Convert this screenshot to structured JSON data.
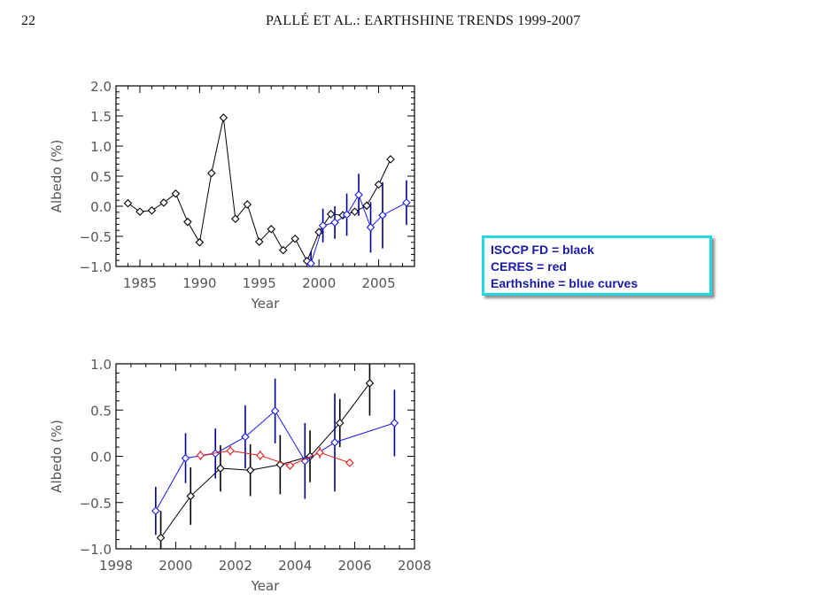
{
  "header": {
    "page_number": "22",
    "running_title": "PALLÉ ET AL.:  EARTHSHINE TRENDS 1999-2007"
  },
  "legend": {
    "lines": [
      "ISCCP FD = black",
      "CERES = red",
      "Earthshine = blue curves"
    ],
    "border_color": "#22d8e0",
    "text_color": "#1a1aa8"
  },
  "chart_data": [
    {
      "type": "line",
      "title": "",
      "xlabel": "Year",
      "ylabel": "Albedo  (%)",
      "xlim": [
        1983,
        2008
      ],
      "ylim": [
        -1.0,
        2.0
      ],
      "xticks": [
        1985,
        1990,
        1995,
        2000,
        2005
      ],
      "xtick_labels": [
        "1985",
        "1990",
        "1995",
        "2000",
        "2005"
      ],
      "yticks": [
        -1.0,
        -0.5,
        0.0,
        0.5,
        1.0,
        1.5,
        2.0
      ],
      "ytick_labels": [
        "−1.0",
        "−0.5",
        "0.0",
        "0.5",
        "1.0",
        "1.5",
        "2.0"
      ],
      "grid": false,
      "series": [
        {
          "name": "ISCCP FD",
          "color": "#000000",
          "x": [
            1984,
            1985,
            1986,
            1987,
            1988,
            1989,
            1990,
            1991,
            1992,
            1993,
            1994,
            1995,
            1996,
            1997,
            1998,
            1999,
            2000,
            2001,
            2002,
            2003,
            2004,
            2005,
            2006
          ],
          "y": [
            0.05,
            -0.09,
            -0.07,
            0.06,
            0.21,
            -0.26,
            -0.6,
            0.55,
            1.47,
            -0.21,
            0.03,
            -0.59,
            -0.38,
            -0.73,
            -0.54,
            -0.91,
            -0.43,
            -0.13,
            -0.15,
            -0.09,
            0.01,
            0.36,
            0.78
          ],
          "yerr": null
        },
        {
          "name": "Earthshine",
          "color": "#1a1ae6",
          "errcolor": "#000090",
          "x": [
            1999.33,
            2000.33,
            2001.33,
            2002.33,
            2003.33,
            2004.33,
            2005.33,
            2007.33
          ],
          "y": [
            -0.95,
            -0.32,
            -0.27,
            -0.14,
            0.19,
            -0.35,
            -0.15,
            0.06
          ],
          "yerr": [
            0.2,
            0.28,
            0.27,
            0.35,
            0.35,
            0.42,
            0.55,
            0.37
          ]
        }
      ]
    },
    {
      "type": "line",
      "title": "",
      "xlabel": "Year",
      "ylabel": "Albedo  (%)",
      "xlim": [
        1998,
        2008
      ],
      "ylim": [
        -1.0,
        1.0
      ],
      "xticks": [
        1998,
        2000,
        2002,
        2004,
        2006,
        2008
      ],
      "xtick_labels": [
        "1998",
        "2000",
        "2002",
        "2004",
        "2006",
        "2008"
      ],
      "yticks": [
        -1.0,
        -0.5,
        0.0,
        0.5,
        1.0
      ],
      "ytick_labels": [
        "−1.0",
        "−0.5",
        "0.0",
        "0.5",
        "1.0"
      ],
      "grid": false,
      "series": [
        {
          "name": "ISCCP FD",
          "color": "#000000",
          "errcolor": "#000000",
          "x": [
            1999.5,
            2000.5,
            2001.5,
            2002.5,
            2003.5,
            2004.5,
            2005.5,
            2006.5
          ],
          "y": [
            -0.88,
            -0.43,
            -0.13,
            -0.15,
            -0.09,
            0.0,
            0.36,
            0.79
          ],
          "yerr": [
            0.29,
            0.31,
            0.25,
            0.28,
            0.32,
            0.28,
            0.26,
            0.35
          ]
        },
        {
          "name": "Earthshine",
          "color": "#1a1ae6",
          "errcolor": "#000090",
          "x": [
            1999.33,
            2000.33,
            2001.33,
            2002.33,
            2003.33,
            2004.33,
            2005.33,
            2007.33
          ],
          "y": [
            -0.59,
            -0.02,
            0.03,
            0.21,
            0.49,
            -0.05,
            0.15,
            0.36
          ],
          "yerr": [
            0.26,
            0.27,
            0.27,
            0.34,
            0.35,
            0.41,
            0.53,
            0.36
          ]
        },
        {
          "name": "CERES",
          "color": "#e02020",
          "errcolor": "#e02020",
          "x": [
            2000.83,
            2001.83,
            2002.83,
            2003.83,
            2004.83,
            2005.83
          ],
          "y": [
            0.01,
            0.06,
            0.01,
            -0.1,
            0.04,
            -0.07
          ],
          "yerr": [
            0.05,
            0.05,
            0.05,
            0.04,
            0.06,
            0.04
          ]
        }
      ]
    }
  ]
}
